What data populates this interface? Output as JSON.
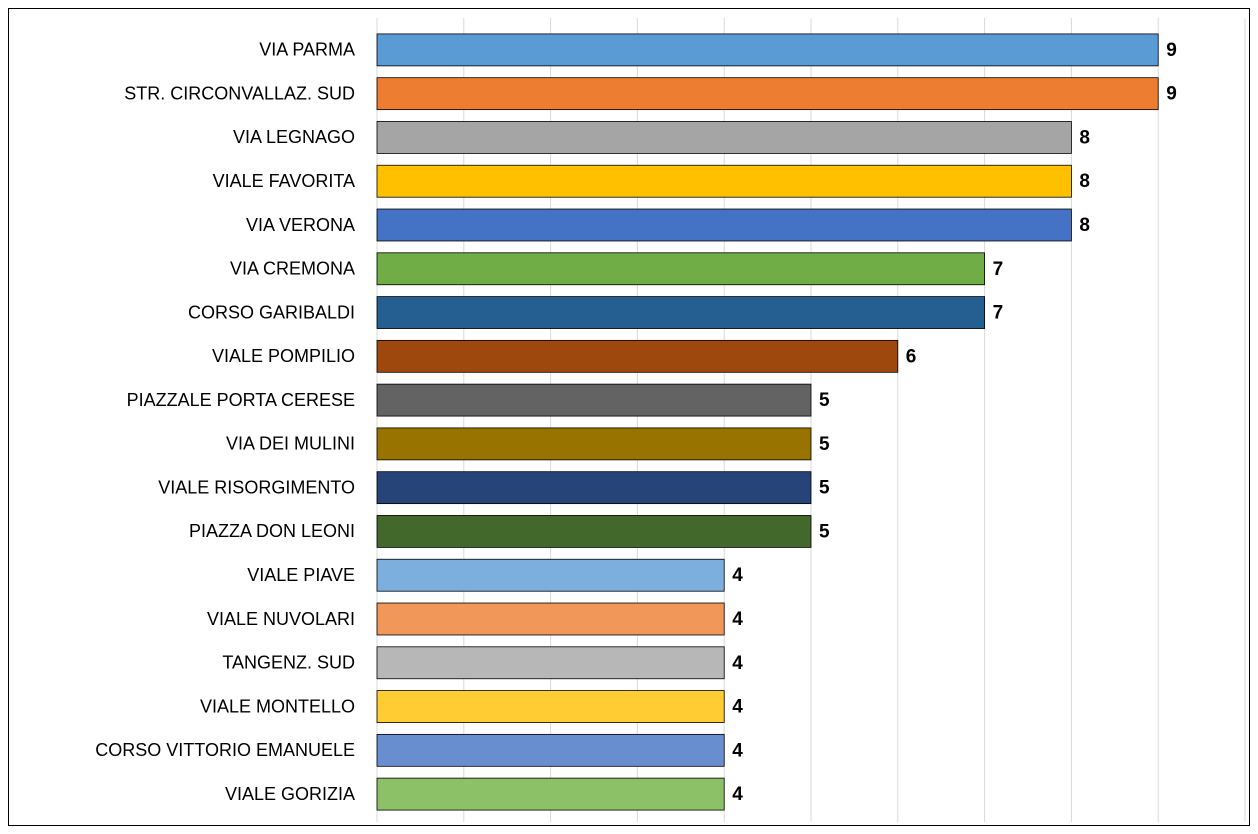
{
  "chart_data": {
    "type": "bar",
    "orientation": "horizontal",
    "categories": [
      "VIA PARMA",
      "STR. CIRCONVALLAZ. SUD",
      "VIA LEGNAGO",
      "VIALE FAVORITA",
      "VIA VERONA",
      "VIA CREMONA",
      "CORSO GARIBALDI",
      "VIALE POMPILIO",
      "PIAZZALE PORTA CERESE",
      "VIA DEI MULINI",
      "VIALE RISORGIMENTO",
      "PIAZZA DON LEONI",
      "VIALE PIAVE",
      "VIALE NUVOLARI",
      "TANGENZ. SUD",
      "VIALE MONTELLO",
      "CORSO VITTORIO EMANUELE",
      "VIALE GORIZIA"
    ],
    "values": [
      9,
      9,
      8,
      8,
      8,
      7,
      7,
      6,
      5,
      5,
      5,
      5,
      4,
      4,
      4,
      4,
      4,
      4
    ],
    "colors": [
      "#5b9bd5",
      "#ed7d31",
      "#a5a5a5",
      "#ffc000",
      "#4472c4",
      "#70ad47",
      "#255e91",
      "#9e480e",
      "#636363",
      "#997300",
      "#264478",
      "#43682b",
      "#7cafdd",
      "#f1975a",
      "#b7b7b7",
      "#ffcd33",
      "#698ed0",
      "#8cc168"
    ],
    "xlim": [
      0,
      10
    ],
    "xticks": [
      0,
      1,
      2,
      3,
      4,
      5,
      6,
      7,
      8,
      9,
      10
    ],
    "grid": true
  }
}
